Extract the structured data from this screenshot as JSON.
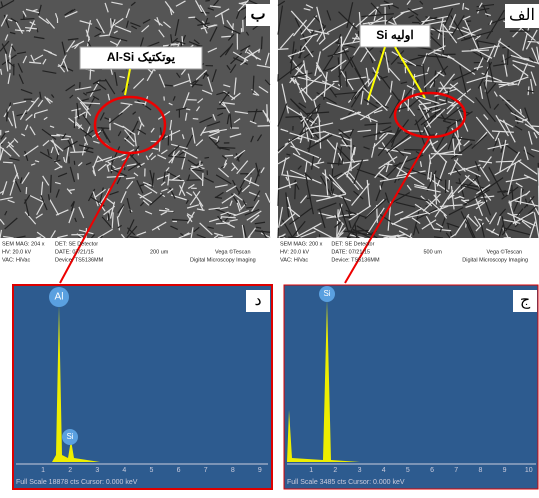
{
  "panels": [
    {
      "letter": "ب",
      "annotation": "Al-Si یوتکتیک",
      "info": [
        "SEM MAG: 204 x",
        "HV: 20.0 kV",
        "VAC: HiVac",
        "DET: SE Detector",
        "DATE: 07/21/15",
        "Device: TS5136MM",
        "200 um",
        "Vega ©Tescan",
        "Digital Microscopy Imaging"
      ]
    },
    {
      "letter": "الف",
      "annotation": "Si اولیه",
      "info": [
        "SEM MAG: 200 x",
        "HV: 20.0 kV",
        "VAC: HiVac",
        "DET: SE Detector",
        "DATE: 07/21/15",
        "Device: TS5136MM",
        "500 um",
        "Vega ©Tescan",
        "Digital Microscopy Imaging"
      ]
    }
  ],
  "spectra": [
    {
      "letter": "د",
      "peaks": [
        "Al",
        "Si"
      ],
      "ticks": [
        1,
        2,
        3,
        4,
        5,
        6,
        7,
        8,
        9
      ],
      "footer": "Full Scale 18878 cts  Cursor: 0.000 keV"
    },
    {
      "letter": "ج",
      "peaks": [
        "Si"
      ],
      "ticks": [
        1,
        2,
        3,
        4,
        5,
        6,
        7,
        8,
        9,
        10
      ],
      "footer": "Full Scale 3485 cts  Cursor: 0.000 keV"
    }
  ]
}
